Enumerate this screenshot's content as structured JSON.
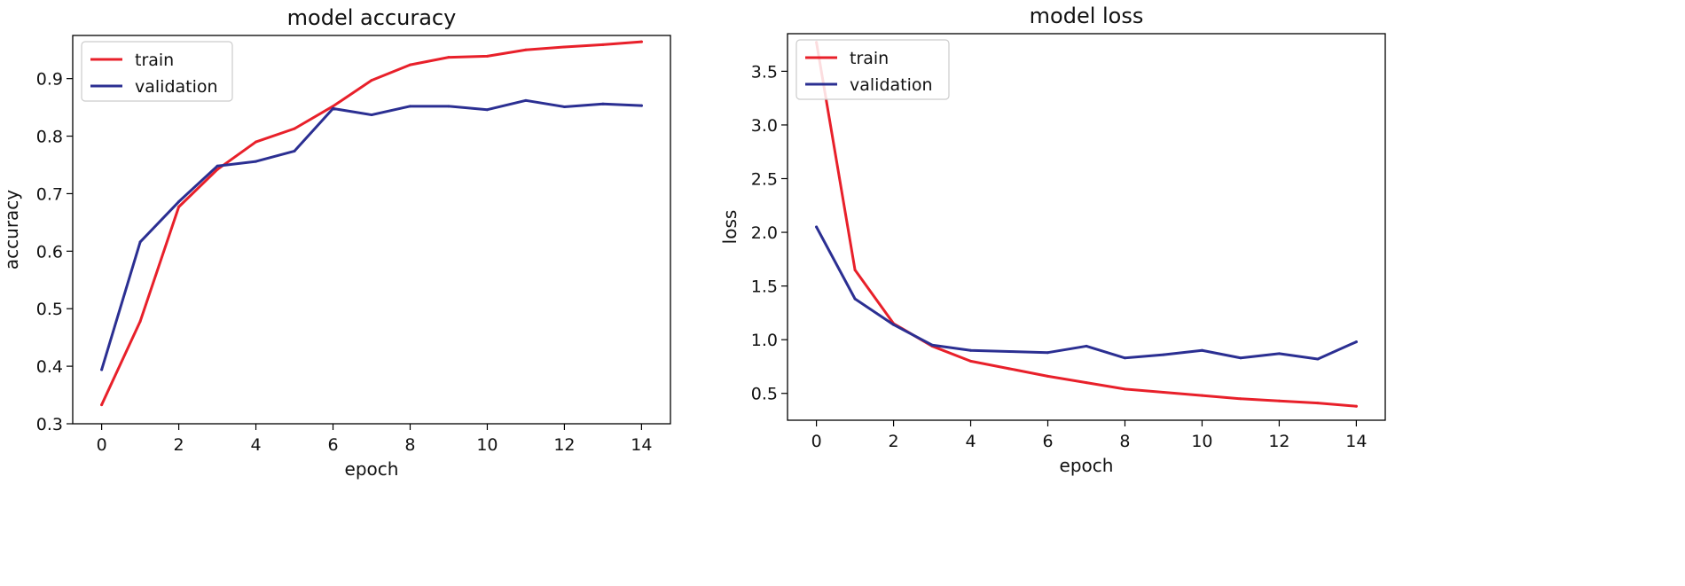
{
  "chart_data": [
    {
      "type": "line",
      "title": "model accuracy",
      "xlabel": "epoch",
      "ylabel": "accuracy",
      "xlim": [
        -0.75,
        14.75
      ],
      "ylim": [
        0.3,
        0.975
      ],
      "xticks": [
        0,
        2,
        4,
        6,
        8,
        10,
        12,
        14
      ],
      "xtick_labels": [
        "0",
        "2",
        "4",
        "6",
        "8",
        "10",
        "12",
        "14"
      ],
      "yticks": [
        0.3,
        0.4,
        0.5,
        0.6,
        0.7,
        0.8,
        0.9
      ],
      "ytick_labels": [
        "0.3",
        "0.4",
        "0.5",
        "0.6",
        "0.7",
        "0.8",
        "0.9"
      ],
      "grid": false,
      "legend_position": "top-left",
      "x": [
        0,
        1,
        2,
        3,
        4,
        5,
        6,
        7,
        8,
        9,
        10,
        11,
        12,
        13,
        14
      ],
      "series": [
        {
          "name": "train",
          "color": "#e8202a",
          "values": [
            0.333,
            0.478,
            0.677,
            0.742,
            0.79,
            0.813,
            0.852,
            0.897,
            0.924,
            0.937,
            0.939,
            0.95,
            0.955,
            0.959,
            0.964
          ]
        },
        {
          "name": "validation",
          "color": "#2b2f92",
          "values": [
            0.394,
            0.616,
            0.686,
            0.748,
            0.756,
            0.774,
            0.848,
            0.837,
            0.852,
            0.852,
            0.846,
            0.862,
            0.851,
            0.856,
            0.853
          ]
        }
      ]
    },
    {
      "type": "line",
      "title": "model loss",
      "xlabel": "epoch",
      "ylabel": "loss",
      "xlim": [
        -0.75,
        14.75
      ],
      "ylim": [
        0.25,
        3.85
      ],
      "xticks": [
        0,
        2,
        4,
        6,
        8,
        10,
        12,
        14
      ],
      "xtick_labels": [
        "0",
        "2",
        "4",
        "6",
        "8",
        "10",
        "12",
        "14"
      ],
      "yticks": [
        0.5,
        1.0,
        1.5,
        2.0,
        2.5,
        3.0,
        3.5
      ],
      "ytick_labels": [
        "0.5",
        "1.0",
        "1.5",
        "2.0",
        "2.5",
        "3.0",
        "3.5"
      ],
      "grid": false,
      "legend_position": "top-left",
      "x": [
        0,
        1,
        2,
        3,
        4,
        5,
        6,
        7,
        8,
        9,
        10,
        11,
        12,
        13,
        14
      ],
      "series": [
        {
          "name": "train",
          "color": "#e8202a",
          "values": [
            3.77,
            1.65,
            1.15,
            0.94,
            0.8,
            0.73,
            0.66,
            0.6,
            0.54,
            0.51,
            0.48,
            0.45,
            0.43,
            0.41,
            0.38
          ]
        },
        {
          "name": "validation",
          "color": "#2b2f92",
          "values": [
            2.05,
            1.38,
            1.14,
            0.95,
            0.9,
            0.89,
            0.88,
            0.94,
            0.83,
            0.86,
            0.9,
            0.83,
            0.87,
            0.82,
            0.98
          ]
        }
      ]
    }
  ]
}
